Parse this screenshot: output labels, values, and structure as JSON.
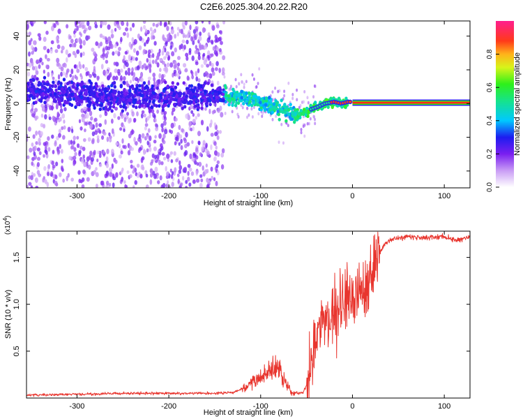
{
  "title": "C2E6.2025.304.20.22.R20",
  "chart_data": [
    {
      "type": "heatmap",
      "name": "spectrogram",
      "xlabel": "Height of straight line (km)",
      "ylabel": "Frequency (Hz)",
      "xlim": [
        -355,
        128
      ],
      "ylim": [
        -50,
        49
      ],
      "x_ticks": [
        -300,
        -200,
        -100,
        0,
        100
      ],
      "x_tick_labels": [
        "-300",
        "-200",
        "-100",
        "0",
        "100"
      ],
      "y_ticks": [
        -40,
        -20,
        0,
        20,
        40
      ],
      "y_tick_labels": [
        "-40",
        "-20",
        "0",
        "20",
        "40"
      ],
      "ridge": [
        {
          "x": -350,
          "y": 8
        },
        {
          "x": -300,
          "y": 5
        },
        {
          "x": -250,
          "y": 4
        },
        {
          "x": -200,
          "y": 4
        },
        {
          "x": -150,
          "y": 5
        },
        {
          "x": -130,
          "y": 4
        },
        {
          "x": -110,
          "y": 3
        },
        {
          "x": -90,
          "y": -1
        },
        {
          "x": -70,
          "y": -5
        },
        {
          "x": -58,
          "y": -7
        },
        {
          "x": -48,
          "y": -4
        },
        {
          "x": -38,
          "y": -2
        },
        {
          "x": -30,
          "y": 0
        },
        {
          "x": -20,
          "y": 1
        },
        {
          "x": -12,
          "y": 0
        },
        {
          "x": -5,
          "y": 1
        },
        {
          "x": 0,
          "y": 1
        },
        {
          "x": 128,
          "y": 0
        }
      ],
      "colorbar": {
        "label": "Normalized spectral amplitude",
        "range": [
          0,
          1
        ],
        "ticks": [
          0.0,
          0.2,
          0.4,
          0.6,
          0.8
        ],
        "tick_labels": [
          "0.0",
          "0.2",
          "0.4",
          "0.6",
          "0.8"
        ]
      }
    },
    {
      "type": "line",
      "name": "snr",
      "xlabel": "Height of straight line (km)",
      "ylabel": "SNR (10 * v/v)",
      "ylabel_scale": "(x10",
      "ylabel_scale_exp": "4",
      "ylabel_scale_close": ")",
      "xlim": [
        -355,
        128
      ],
      "ylim": [
        0,
        1.78
      ],
      "x_ticks": [
        -300,
        -200,
        -100,
        0,
        100
      ],
      "x_tick_labels": [
        "-300",
        "-200",
        "-100",
        "0",
        "100"
      ],
      "y_ticks": [
        0.5,
        1.0,
        1.5
      ],
      "y_tick_labels": [
        "0.5",
        "1.0",
        "1.5"
      ],
      "series": [
        {
          "name": "SNR",
          "color": "#e8352e",
          "points": [
            {
              "x": -355,
              "y": 0.03
            },
            {
              "x": -300,
              "y": 0.04
            },
            {
              "x": -250,
              "y": 0.05
            },
            {
              "x": -200,
              "y": 0.05
            },
            {
              "x": -150,
              "y": 0.05
            },
            {
              "x": -130,
              "y": 0.06
            },
            {
              "x": -115,
              "y": 0.12
            },
            {
              "x": -100,
              "y": 0.22
            },
            {
              "x": -90,
              "y": 0.3
            },
            {
              "x": -80,
              "y": 0.35
            },
            {
              "x": -72,
              "y": 0.15
            },
            {
              "x": -65,
              "y": 0.05
            },
            {
              "x": -55,
              "y": 0.06
            },
            {
              "x": -48,
              "y": 0.15
            },
            {
              "x": -40,
              "y": 0.6
            },
            {
              "x": -32,
              "y": 0.85
            },
            {
              "x": -25,
              "y": 0.8
            },
            {
              "x": -15,
              "y": 0.95
            },
            {
              "x": -5,
              "y": 1.05
            },
            {
              "x": 5,
              "y": 1.1
            },
            {
              "x": 15,
              "y": 1.25
            },
            {
              "x": 25,
              "y": 1.45
            },
            {
              "x": 35,
              "y": 1.65
            },
            {
              "x": 45,
              "y": 1.7
            },
            {
              "x": 60,
              "y": 1.72
            },
            {
              "x": 80,
              "y": 1.71
            },
            {
              "x": 100,
              "y": 1.72
            },
            {
              "x": 115,
              "y": 1.68
            },
            {
              "x": 128,
              "y": 1.72
            }
          ]
        }
      ]
    }
  ]
}
